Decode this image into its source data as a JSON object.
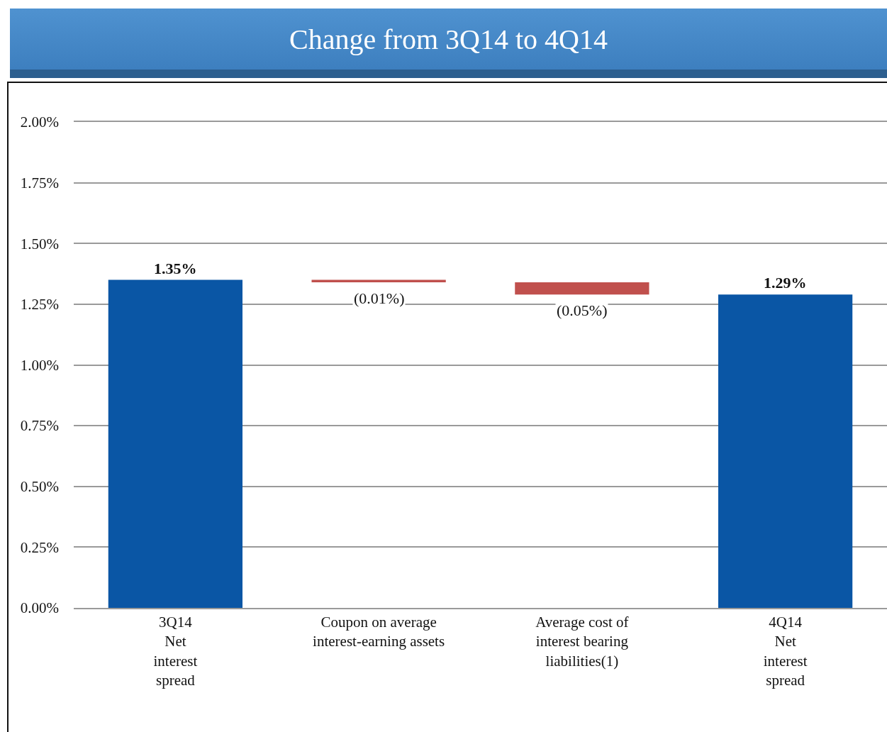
{
  "chart_data": {
    "type": "bar",
    "title": "Change from 3Q14 to 4Q14",
    "categories": [
      "3Q14\nNet\ninterest\nspread",
      "Coupon on average\ninterest-earning assets",
      "Average cost of\ninterest bearing\nliabilities(1)",
      "4Q14\nNet\ninterest\nspread"
    ],
    "values": [
      1.35,
      -0.01,
      -0.05,
      1.29
    ],
    "base": [
      0,
      1.35,
      1.34,
      0
    ],
    "colors": [
      "#0a56a5",
      "#c0504d",
      "#c0504d",
      "#0a56a5"
    ],
    "value_labels": [
      "1.35%",
      "(0.01%)",
      "(0.05%)",
      "1.29%"
    ],
    "ylim": [
      0,
      2.0
    ],
    "yticks": [
      {
        "value": 0,
        "label": "0.00%"
      },
      {
        "value": 0.25,
        "label": "0.25%"
      },
      {
        "value": 0.5,
        "label": "0.50%"
      },
      {
        "value": 0.75,
        "label": "0.75%"
      },
      {
        "value": 1,
        "label": "1.00%"
      },
      {
        "value": 1.25,
        "label": "1.25%"
      },
      {
        "value": 1.5,
        "label": "1.50%"
      },
      {
        "value": 1.75,
        "label": "1.75%"
      },
      {
        "value": 2,
        "label": "2.00%"
      }
    ],
    "grid": "y"
  }
}
